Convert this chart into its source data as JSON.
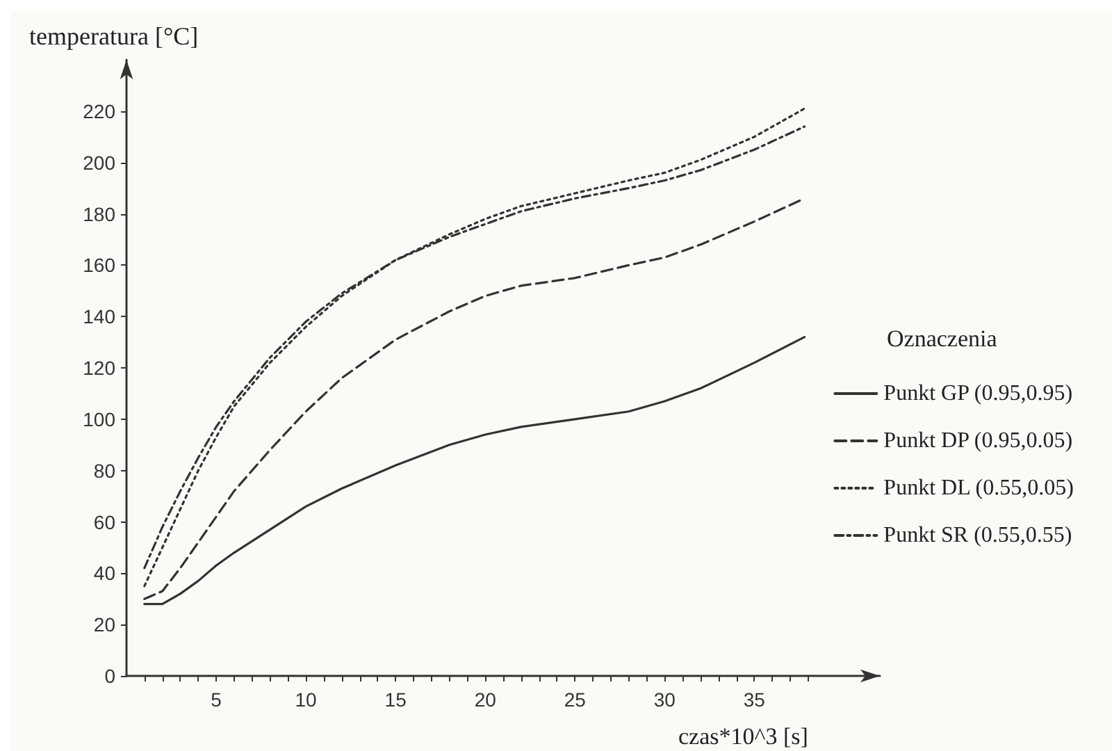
{
  "chart_data": {
    "type": "line",
    "xlabel": "czas*10^3 [s]",
    "ylabel": "temperatura [°C]",
    "legend_title": "Oznaczenia",
    "legend": "right",
    "x": [
      1,
      2,
      3,
      4,
      5,
      6,
      8,
      10,
      12,
      15,
      18,
      20,
      22,
      25,
      28,
      30,
      32,
      35,
      37.8
    ],
    "xlim": [
      0,
      42
    ],
    "xticks": [
      {
        "value": 1,
        "label": null
      },
      {
        "value": 2,
        "label": null
      },
      {
        "value": 3,
        "label": null
      },
      {
        "value": 4,
        "label": null
      },
      5,
      {
        "value": 6,
        "label": null
      },
      {
        "value": 7,
        "label": null
      },
      {
        "value": 8,
        "label": null
      },
      {
        "value": 9,
        "label": null
      },
      10,
      {
        "value": 11,
        "label": null
      },
      {
        "value": 12,
        "label": null
      },
      {
        "value": 13,
        "label": null
      },
      {
        "value": 14,
        "label": null
      },
      15,
      {
        "value": 16,
        "label": null
      },
      {
        "value": 17,
        "label": null
      },
      {
        "value": 18,
        "label": null
      },
      {
        "value": 19,
        "label": null
      },
      20,
      {
        "value": 21,
        "label": null
      },
      {
        "value": 22,
        "label": null
      },
      {
        "value": 23,
        "label": null
      },
      {
        "value": 24,
        "label": null
      },
      25,
      {
        "value": 26,
        "label": null
      },
      {
        "value": 27,
        "label": null
      },
      {
        "value": 28,
        "label": null
      },
      {
        "value": 29,
        "label": null
      },
      30,
      {
        "value": 31,
        "label": null
      },
      {
        "value": 32,
        "label": null
      },
      {
        "value": 33,
        "label": null
      },
      {
        "value": 34,
        "label": null
      },
      35,
      {
        "value": 36,
        "label": null
      },
      {
        "value": 37,
        "label": null
      },
      {
        "value": 38,
        "label": null
      }
    ],
    "ylim": [
      0,
      240
    ],
    "yticks": [
      0,
      20,
      40,
      60,
      80,
      100,
      120,
      140,
      160,
      180,
      200,
      220
    ],
    "grid": false,
    "marker": "none",
    "series": [
      {
        "name": "Punkt GP (0.95,0.95)",
        "color": "#333333",
        "line_style": "solid",
        "values": [
          28,
          28,
          32,
          37,
          43,
          48,
          57,
          66,
          73,
          82,
          90,
          94,
          97,
          100,
          103,
          107,
          112,
          122,
          132
        ]
      },
      {
        "name": "Punkt DP (0.95,0.05)",
        "color": "#333333",
        "line_style": "dashed",
        "values": [
          30,
          33,
          42,
          52,
          62,
          72,
          88,
          103,
          116,
          131,
          142,
          148,
          152,
          155,
          160,
          163,
          168,
          177,
          186
        ]
      },
      {
        "name": "Punkt DL (0.55,0.05)",
        "color": "#333333",
        "line_style": "dotted",
        "values": [
          35,
          50,
          65,
          80,
          93,
          105,
          122,
          136,
          148,
          162,
          172,
          178,
          183,
          188,
          193,
          196,
          201,
          210,
          221
        ]
      },
      {
        "name": "Punkt SR (0.55,0.55)",
        "color": "#333333",
        "line_style": "dashdot",
        "values": [
          42,
          58,
          72,
          85,
          97,
          107,
          124,
          138,
          149,
          162,
          171,
          176,
          181,
          186,
          190,
          193,
          197,
          205,
          214
        ]
      }
    ]
  }
}
